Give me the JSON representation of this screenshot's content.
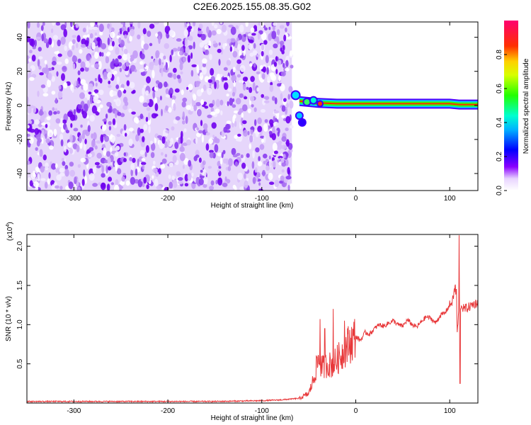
{
  "title": "C2E6.2025.155.08.35.G02",
  "chart_data": [
    {
      "type": "heatmap",
      "xlabel": "Height of straight line (km)",
      "ylabel": "Frequency (Hz)",
      "xlim": [
        -350,
        130
      ],
      "ylim": [
        -50,
        49
      ],
      "xticks": [
        -300,
        -200,
        -100,
        0,
        100
      ],
      "yticks": [
        -40,
        -20,
        0,
        20,
        40
      ],
      "noise_region_x": [
        -350,
        -68
      ],
      "signal_band": {
        "x": [
          -60,
          -40,
          -20,
          0,
          20,
          40,
          60,
          80,
          100,
          110,
          130
        ],
        "freq": [
          2.5,
          1.5,
          1.0,
          1.0,
          1.0,
          1.0,
          1.0,
          1.0,
          1.0,
          0.5,
          0.5
        ]
      },
      "colorbar": {
        "label": "Normalized spectral amplitude",
        "range": [
          0.0,
          1.0
        ],
        "ticks": [
          0.0,
          0.2,
          0.4,
          0.6,
          0.8
        ]
      }
    },
    {
      "type": "line",
      "xlabel": "Height of straight line (km)",
      "ylabel": "SNR (10 * v/v)",
      "y_multiplier": "(x10",
      "y_multiplier_exp": "4",
      "y_multiplier_close": ")",
      "xlim": [
        -350,
        130
      ],
      "ylim": [
        0,
        2.15
      ],
      "xticks": [
        -300,
        -200,
        -100,
        0,
        100
      ],
      "yticks": [
        0.5,
        1.0,
        1.5,
        2.0
      ],
      "color": "#e8383a",
      "series": [
        {
          "x": [
            -350,
            -300,
            -250,
            -200,
            -150,
            -100,
            -80,
            -60,
            -50,
            -45,
            -40,
            -35,
            -30,
            -25,
            -20,
            -15,
            -10,
            -5,
            0,
            5,
            10,
            15,
            20,
            25,
            30,
            35,
            40,
            45,
            50,
            55,
            60,
            65,
            70,
            75,
            80,
            85,
            90,
            95,
            100,
            103,
            106,
            108,
            110,
            112,
            115,
            120,
            125,
            130
          ],
          "y": [
            0.02,
            0.02,
            0.02,
            0.02,
            0.02,
            0.03,
            0.04,
            0.06,
            0.12,
            0.3,
            0.55,
            0.45,
            0.5,
            0.48,
            0.55,
            0.62,
            0.72,
            0.78,
            0.85,
            0.8,
            0.9,
            0.88,
            0.95,
            1.0,
            0.98,
            1.02,
            1.05,
            1.0,
            0.98,
            1.06,
            1.0,
            0.97,
            1.04,
            1.1,
            1.08,
            1.02,
            1.12,
            1.15,
            1.25,
            1.3,
            1.5,
            0.9,
            1.2,
            1.25,
            1.2,
            1.22,
            1.26,
            1.28
          ],
          "spikes": [
            {
              "x": -38,
              "y": 1.07
            },
            {
              "x": -33,
              "y": 0.95
            },
            {
              "x": -24,
              "y": 1.2
            },
            {
              "x": -12,
              "y": 1.05
            },
            {
              "x": 107,
              "y": 1.45
            },
            {
              "x": 110,
              "y": 2.14
            },
            {
              "x": 111,
              "y": 0.25
            }
          ]
        }
      ]
    }
  ]
}
